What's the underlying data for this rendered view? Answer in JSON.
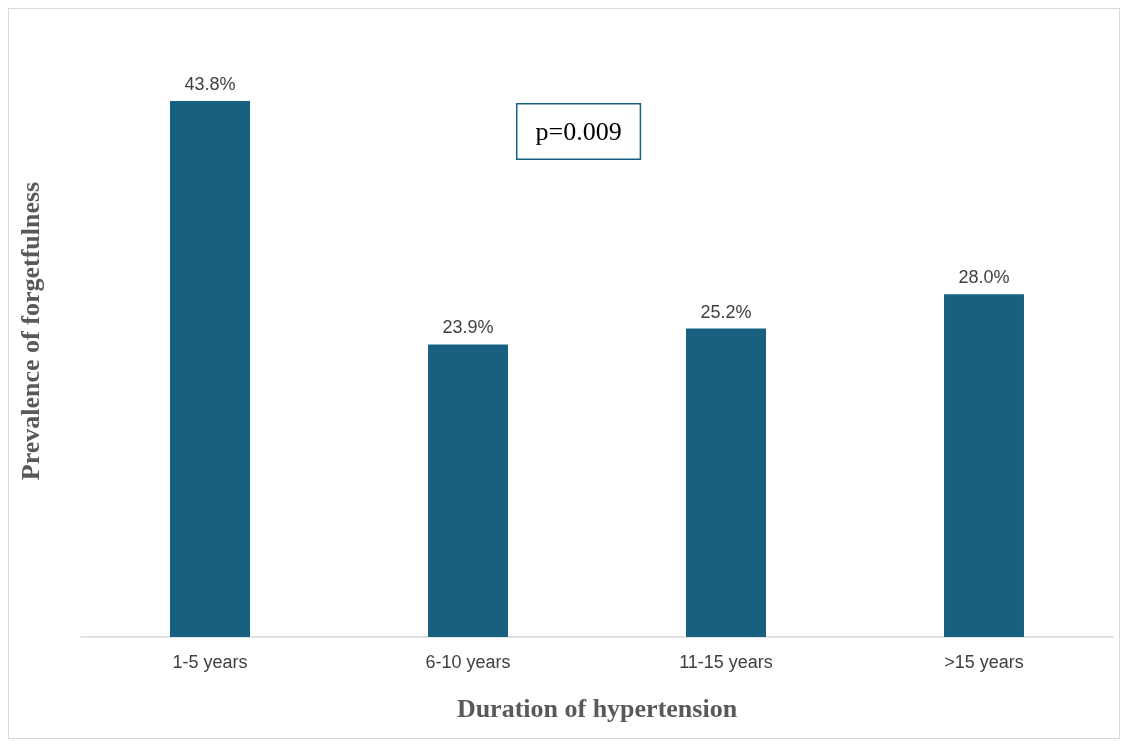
{
  "chart_data": {
    "type": "bar",
    "xlabel": "Duration of hypertension",
    "ylabel": "Prevalence of forgetfulness",
    "categories": [
      "1-5 years",
      "6-10 years",
      "11-15 years",
      ">15 years"
    ],
    "values": [
      43.8,
      23.9,
      25.2,
      28.0
    ],
    "value_labels": [
      "43.8%",
      "23.9%",
      "25.2%",
      "28.0%"
    ],
    "color": "#17607f",
    "annotations": [
      "p=0.009"
    ]
  }
}
